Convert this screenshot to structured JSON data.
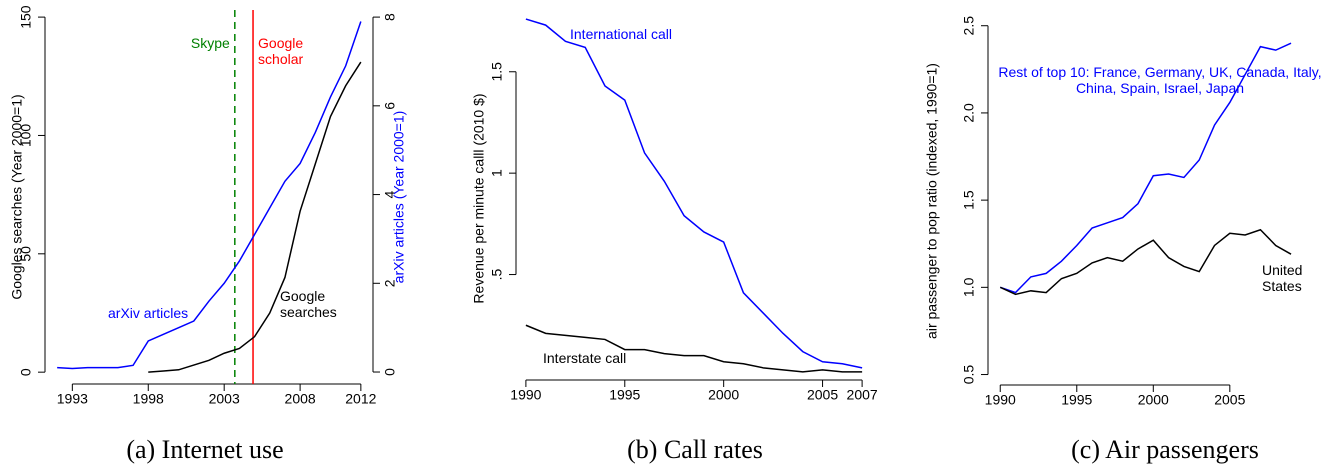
{
  "chart_data": [
    {
      "type": "line",
      "caption": "(a) Internet use",
      "ylabel": "Googles searches (Year 2000=1)",
      "y2label": "arXiv articles (Year 2000=1)",
      "y2label_color": "#0000ff",
      "xlim": [
        1991.2,
        2012.8
      ],
      "xticks": [
        1993,
        1998,
        2003,
        2008,
        2012
      ],
      "ylim": [
        -5,
        153
      ],
      "yticks": [
        0,
        50,
        100,
        150
      ],
      "y2lim": [
        -0.27,
        8.16
      ],
      "y2ticks": [
        0,
        2,
        4,
        6,
        8
      ],
      "x": [
        1992,
        1993,
        1994,
        1995,
        1996,
        1997,
        1998,
        1999,
        2000,
        2001,
        2002,
        2003,
        2004,
        2005,
        2006,
        2007,
        2008,
        2009,
        2010,
        2011,
        2012
      ],
      "series": [
        {
          "name": "Google searches",
          "color": "#000000",
          "values": [
            null,
            null,
            null,
            null,
            null,
            null,
            0,
            0.5,
            1,
            3,
            5,
            8,
            10,
            15,
            25,
            40,
            68,
            88,
            108,
            121,
            131
          ]
        },
        {
          "name": "arXiv articles",
          "color": "#0000ff",
          "axis": "y2",
          "values": [
            0.1,
            0.08,
            0.1,
            0.1,
            0.1,
            0.15,
            0.7,
            0.85,
            1.0,
            1.15,
            1.6,
            2.0,
            2.5,
            3.1,
            3.7,
            4.3,
            4.7,
            5.4,
            6.2,
            6.9,
            7.9
          ]
        }
      ],
      "vlines": [
        {
          "x": 2003.7,
          "label": "Skype",
          "color": "#008000",
          "dash": true
        },
        {
          "x": 2004.9,
          "label": "Google scholar",
          "color": "#ff0000",
          "dash": false
        }
      ]
    },
    {
      "type": "line",
      "caption": "(b) Call rates",
      "ylabel": "Revenue per minute calll (2010 $)",
      "xlim": [
        1989.5,
        2007.5
      ],
      "xticks": [
        1990,
        1995,
        2000,
        2005,
        2007
      ],
      "ylim": [
        -0.02,
        1.77
      ],
      "yticks": [
        {
          "value": 0.5,
          "label": ".5"
        },
        1,
        1.5
      ],
      "x": [
        1990,
        1991,
        1992,
        1993,
        1994,
        1995,
        1996,
        1997,
        1998,
        1999,
        2000,
        2001,
        2002,
        2003,
        2004,
        2005,
        2006,
        2007
      ],
      "series": [
        {
          "name": "International call",
          "color": "#0000ff",
          "values": [
            1.76,
            1.73,
            1.65,
            1.62,
            1.43,
            1.36,
            1.1,
            0.96,
            0.79,
            0.71,
            0.66,
            0.41,
            0.31,
            0.21,
            0.12,
            0.07,
            0.06,
            0.04
          ]
        },
        {
          "name": "Interstate call",
          "color": "#000000",
          "values": [
            0.25,
            0.21,
            0.2,
            0.19,
            0.18,
            0.13,
            0.13,
            0.11,
            0.1,
            0.1,
            0.07,
            0.06,
            0.04,
            0.03,
            0.02,
            0.03,
            0.02,
            0.02
          ]
        }
      ]
    },
    {
      "type": "line",
      "caption": "(c) Air passengers",
      "ylabel": "air passenger to pop ratio (indexed, 1990=1)",
      "xlim": [
        1989.2,
        2010.5
      ],
      "xticks": [
        1990,
        1995,
        2000,
        2005
      ],
      "ylim": [
        0.44,
        2.55
      ],
      "yticks": [
        0.5,
        {
          "value": 1,
          "label": "1.0"
        },
        1.5,
        {
          "value": 2,
          "label": "2.0"
        },
        2.5
      ],
      "x": [
        1990,
        1991,
        1992,
        1993,
        1994,
        1995,
        1996,
        1997,
        1998,
        1999,
        2000,
        2001,
        2002,
        2003,
        2004,
        2005,
        2006,
        2007,
        2008,
        2009
      ],
      "series": [
        {
          "name": "Rest of top 10: France, Germany, UK, Canada, Italy, China, Spain, Israel, Japan",
          "color": "#0000ff",
          "values": [
            1.0,
            0.97,
            1.06,
            1.08,
            1.15,
            1.24,
            1.34,
            1.37,
            1.4,
            1.48,
            1.64,
            1.65,
            1.63,
            1.73,
            1.93,
            2.06,
            2.22,
            2.38,
            2.36,
            2.4
          ]
        },
        {
          "name": "United States",
          "color": "#000000",
          "values": [
            1.0,
            0.96,
            0.98,
            0.97,
            1.05,
            1.08,
            1.14,
            1.17,
            1.15,
            1.22,
            1.27,
            1.17,
            1.12,
            1.09,
            1.24,
            1.31,
            1.3,
            1.33,
            1.24,
            1.19
          ]
        }
      ]
    }
  ]
}
